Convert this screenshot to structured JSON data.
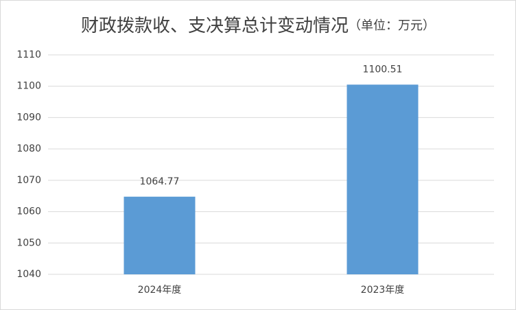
{
  "chart_data": {
    "type": "bar",
    "title": "财政拨款收、支决算总计变动情况",
    "subtitle": "（单位：万元）",
    "categories": [
      "2024年度",
      "2023年度"
    ],
    "values": [
      1064.77,
      1100.51
    ],
    "color": "#5b9bd5",
    "ylim": [
      1040,
      1110
    ],
    "yticks": [
      1040,
      1050,
      1060,
      1070,
      1080,
      1090,
      1100,
      1110
    ],
    "grid": true,
    "data_labels": true
  }
}
